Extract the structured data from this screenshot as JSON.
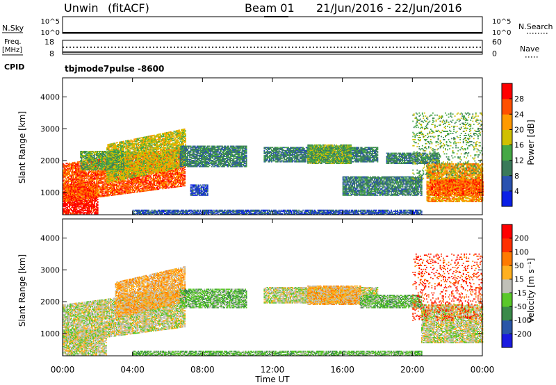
{
  "header": {
    "station": "Unwin",
    "mode": "(fitACF)",
    "beam": "Beam 01",
    "date_range": "21/Jun/2016 - 22/Jun/2016"
  },
  "top_panels": {
    "nsky": {
      "label": "N.Sky",
      "ticks": [
        "10^5",
        "10^0"
      ],
      "right_ticks": [
        "10^5",
        "10^0"
      ],
      "right_label": "N.Search"
    },
    "freq": {
      "label_line1": "Freq.",
      "label_line2": "[MHz]",
      "ticks": [
        "18",
        "8"
      ],
      "right_ticks": [
        "60",
        "0"
      ],
      "right_label": "Nave"
    },
    "cpid": {
      "label": "CPID",
      "value": "tbjmode7pulse -8600"
    }
  },
  "chart_data": [
    {
      "type": "heatmap",
      "name": "power",
      "ylabel": "Slant Range [km]",
      "ylim": [
        300,
        4600
      ],
      "yticks": [
        "1000",
        "2000",
        "3000",
        "4000"
      ],
      "xlim_hours": [
        0,
        24
      ],
      "colorbar": {
        "label": "Power [dB]",
        "ticks": [
          "4",
          "8",
          "12",
          "16",
          "20",
          "24",
          "28"
        ],
        "colors": [
          "#0a1fe6",
          "#2a52b0",
          "#3a7a5a",
          "#45a845",
          "#d0c000",
          "#ff9a00",
          "#ff5000",
          "#ff0000"
        ]
      },
      "regions": [
        {
          "t0": 0.0,
          "t1": 2.0,
          "r0": 320,
          "r1": 1250,
          "level": 7
        },
        {
          "t0": 0.0,
          "t1": 7.0,
          "r0": 700,
          "r1": 1900,
          "level": 6,
          "slope": 1
        },
        {
          "t0": 2.5,
          "t1": 7.0,
          "r0": 1300,
          "r1": 2500,
          "level": 4,
          "slope": 1
        },
        {
          "t0": 1.0,
          "t1": 3.5,
          "r0": 1700,
          "r1": 2300,
          "level": 3
        },
        {
          "t0": 7.3,
          "t1": 8.3,
          "r0": 900,
          "r1": 1250,
          "level": 1
        },
        {
          "t0": 6.7,
          "t1": 10.5,
          "r0": 1800,
          "r1": 2450,
          "level": 2
        },
        {
          "t0": 11.5,
          "t1": 18.0,
          "r0": 1950,
          "r1": 2400,
          "level": 2
        },
        {
          "t0": 14.0,
          "t1": 16.5,
          "r0": 1900,
          "r1": 2500,
          "level": 3
        },
        {
          "t0": 16.0,
          "t1": 20.5,
          "r0": 900,
          "r1": 1500,
          "level": 2
        },
        {
          "t0": 18.5,
          "t1": 21.5,
          "r0": 1900,
          "r1": 2250,
          "level": 2
        },
        {
          "t0": 20.8,
          "t1": 24.0,
          "r0": 700,
          "r1": 1900,
          "level": 5
        },
        {
          "t0": 21.0,
          "t1": 24.0,
          "r0": 900,
          "r1": 1400,
          "level": 6
        },
        {
          "t0": 20.0,
          "t1": 24.0,
          "r0": 1400,
          "r1": 3500,
          "level": 3,
          "sparse": 1
        },
        {
          "t0": 4.0,
          "t1": 20.5,
          "r0": 300,
          "r1": 450,
          "level": 1
        }
      ]
    },
    {
      "type": "heatmap",
      "name": "velocity",
      "ylabel": "Slant Range [km]",
      "ylim": [
        300,
        4600
      ],
      "yticks": [
        "1000",
        "2000",
        "3000",
        "4000"
      ],
      "xlim_hours": [
        0,
        24
      ],
      "colorbar": {
        "label": "Velocity [m s⁻¹]",
        "ticks": [
          "200",
          "100",
          "50",
          "15",
          "-15",
          "-50",
          "-100",
          "-200"
        ],
        "colors": [
          "#1a1ae0",
          "#2a56a8",
          "#3a8a4a",
          "#5ac82a",
          "#c0c0b8",
          "#ffb020",
          "#ff7a00",
          "#ff3000",
          "#ff0000"
        ]
      },
      "regions": [
        {
          "t0": 0.0,
          "t1": 2.5,
          "r0": 320,
          "r1": 1100,
          "level": 4
        },
        {
          "t0": 0.0,
          "t1": 7.0,
          "r0": 700,
          "r1": 1900,
          "level": 4,
          "slope": 1
        },
        {
          "t0": 3.0,
          "t1": 7.0,
          "r0": 1500,
          "r1": 2600,
          "level": 5,
          "slope": 1
        },
        {
          "t0": 6.7,
          "t1": 10.5,
          "r0": 1800,
          "r1": 2400,
          "level": 3
        },
        {
          "t0": 11.5,
          "t1": 18.0,
          "r0": 1950,
          "r1": 2450,
          "level": 4
        },
        {
          "t0": 14.0,
          "t1": 17.0,
          "r0": 1900,
          "r1": 2500,
          "level": 5
        },
        {
          "t0": 17.0,
          "t1": 20.5,
          "r0": 1800,
          "r1": 2200,
          "level": 3
        },
        {
          "t0": 20.5,
          "t1": 24.0,
          "r0": 700,
          "r1": 1900,
          "level": 4
        },
        {
          "t0": 20.0,
          "t1": 24.0,
          "r0": 1400,
          "r1": 3500,
          "level": 7,
          "sparse": 1
        },
        {
          "t0": 4.0,
          "t1": 20.5,
          "r0": 300,
          "r1": 450,
          "level": 3
        }
      ]
    }
  ],
  "x_axis": {
    "label": "Time UT",
    "ticks": [
      "00:00",
      "04:00",
      "08:00",
      "12:00",
      "16:00",
      "20:00",
      "00:00"
    ]
  }
}
